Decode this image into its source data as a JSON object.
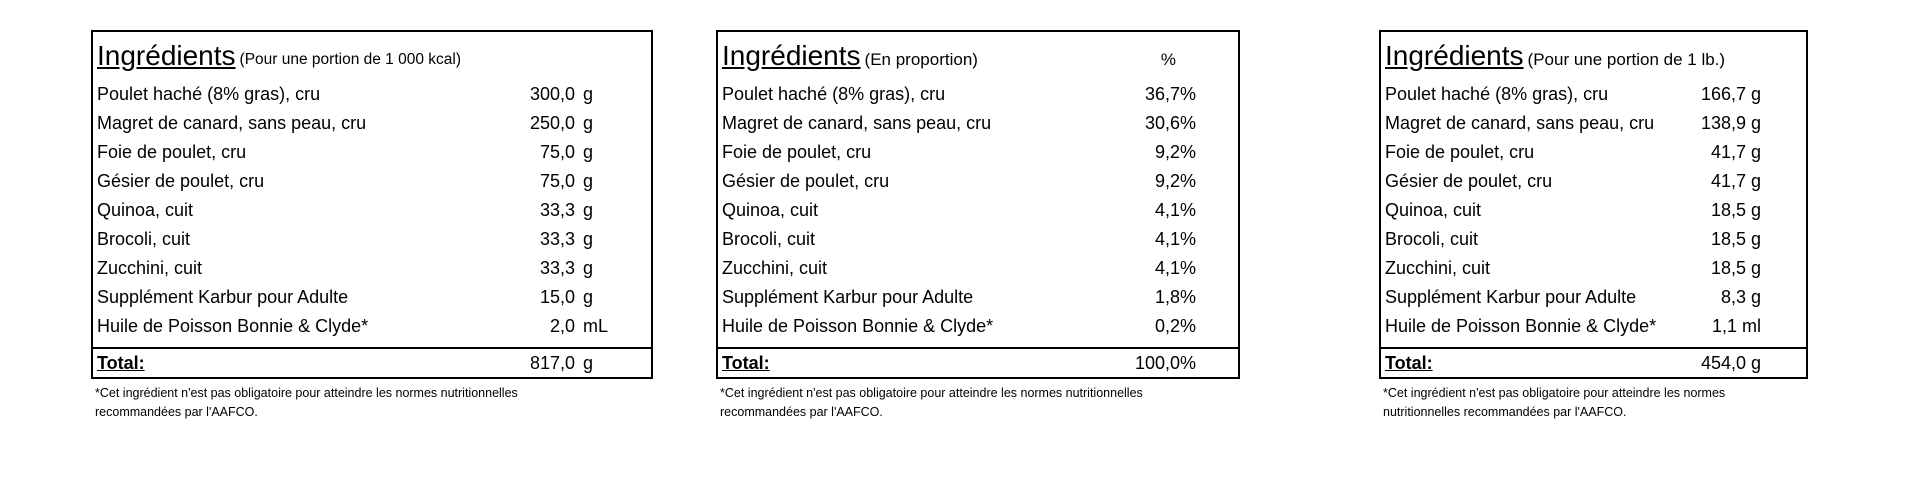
{
  "panels": [
    {
      "title": "Ingrédients",
      "subtitle": "(Pour une portion de 1 000 kcal)",
      "header_right": "",
      "rows": [
        {
          "ingredient": "Poulet haché (8% gras), cru",
          "value": "300,0",
          "unit": "g"
        },
        {
          "ingredient": "Magret de canard, sans peau, cru",
          "value": "250,0",
          "unit": "g"
        },
        {
          "ingredient": "Foie de poulet, cru",
          "value": "75,0",
          "unit": "g"
        },
        {
          "ingredient": "Gésier de poulet, cru",
          "value": "75,0",
          "unit": "g"
        },
        {
          "ingredient": "Quinoa, cuit",
          "value": "33,3",
          "unit": "g"
        },
        {
          "ingredient": "Brocoli, cuit",
          "value": "33,3",
          "unit": "g"
        },
        {
          "ingredient": "Zucchini, cuit",
          "value": "33,3",
          "unit": "g"
        },
        {
          "ingredient": "Supplément Karbur pour Adulte",
          "value": "15,0",
          "unit": "g"
        },
        {
          "ingredient": "Huile de Poisson Bonnie & Clyde*",
          "value": "2,0",
          "unit": "mL"
        }
      ],
      "total_label": "Total:",
      "total_value": "817,0",
      "total_unit": "g",
      "note": "*Cet ingrédient n'est pas obligatoire pour atteindre les normes nutritionnelles recommandées par l'AAFCO."
    },
    {
      "title": "Ingrédients",
      "subtitle": "(En proportion)",
      "header_right": "%",
      "rows": [
        {
          "ingredient": "Poulet haché (8% gras), cru",
          "value": "36,7%",
          "unit": ""
        },
        {
          "ingredient": "Magret de canard, sans peau, cru",
          "value": "30,6%",
          "unit": ""
        },
        {
          "ingredient": "Foie de poulet, cru",
          "value": "9,2%",
          "unit": ""
        },
        {
          "ingredient": "Gésier de poulet, cru",
          "value": "9,2%",
          "unit": ""
        },
        {
          "ingredient": "Quinoa, cuit",
          "value": "4,1%",
          "unit": ""
        },
        {
          "ingredient": "Brocoli, cuit",
          "value": "4,1%",
          "unit": ""
        },
        {
          "ingredient": "Zucchini, cuit",
          "value": "4,1%",
          "unit": ""
        },
        {
          "ingredient": "Supplément Karbur pour Adulte",
          "value": "1,8%",
          "unit": ""
        },
        {
          "ingredient": "Huile de Poisson Bonnie & Clyde*",
          "value": "0,2%",
          "unit": ""
        }
      ],
      "total_label": "Total:",
      "total_value": "100,0%",
      "total_unit": "",
      "note": "*Cet ingrédient n'est pas obligatoire pour atteindre les normes nutritionnelles recommandées par l'AAFCO."
    },
    {
      "title": "Ingrédients",
      "subtitle": "(Pour une portion de 1 lb.)",
      "header_right": "",
      "rows": [
        {
          "ingredient": "Poulet haché (8% gras), cru",
          "value": "166,7 g",
          "unit": ""
        },
        {
          "ingredient": "Magret de canard, sans peau, cru",
          "value": "138,9 g",
          "unit": ""
        },
        {
          "ingredient": "Foie de poulet, cru",
          "value": "41,7 g",
          "unit": ""
        },
        {
          "ingredient": "Gésier de poulet, cru",
          "value": "41,7 g",
          "unit": ""
        },
        {
          "ingredient": "Quinoa, cuit",
          "value": "18,5 g",
          "unit": ""
        },
        {
          "ingredient": "Brocoli, cuit",
          "value": "18,5 g",
          "unit": ""
        },
        {
          "ingredient": "Zucchini, cuit",
          "value": "18,5 g",
          "unit": ""
        },
        {
          "ingredient": "Supplément Karbur pour Adulte",
          "value": "8,3 g",
          "unit": ""
        },
        {
          "ingredient": "Huile de Poisson Bonnie & Clyde*",
          "value": "1,1 ml",
          "unit": ""
        }
      ],
      "total_label": "Total:",
      "total_value": "454,0 g",
      "total_unit": "",
      "note": "*Cet ingrédient n'est pas obligatoire pour atteindre les normes nutritionnelles recommandées par l'AAFCO."
    }
  ]
}
